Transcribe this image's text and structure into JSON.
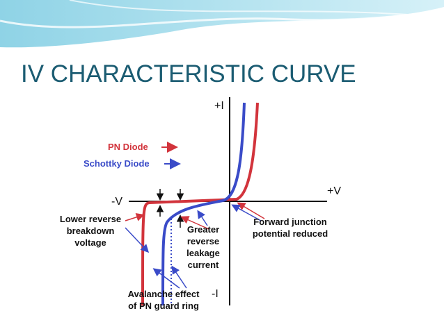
{
  "header": {
    "title": "IV CHARACTERISTIC CURVE"
  },
  "diagram": {
    "axes": {
      "plus_i": "+I",
      "minus_i": "-I",
      "minus_v": "-V",
      "plus_v": "+V"
    },
    "legend": {
      "pn": "PN Diode",
      "schottky": "Schottky Diode"
    },
    "annotations": {
      "lower_reverse": [
        "Lower reverse",
        "breakdown",
        "voltage"
      ],
      "greater_reverse": [
        "Greater",
        "reverse",
        "leakage",
        "current"
      ],
      "forward": [
        "Forward junction",
        "potential reduced"
      ],
      "avalanche": [
        "Avalanche effect",
        "of PN guard ring"
      ]
    }
  }
}
